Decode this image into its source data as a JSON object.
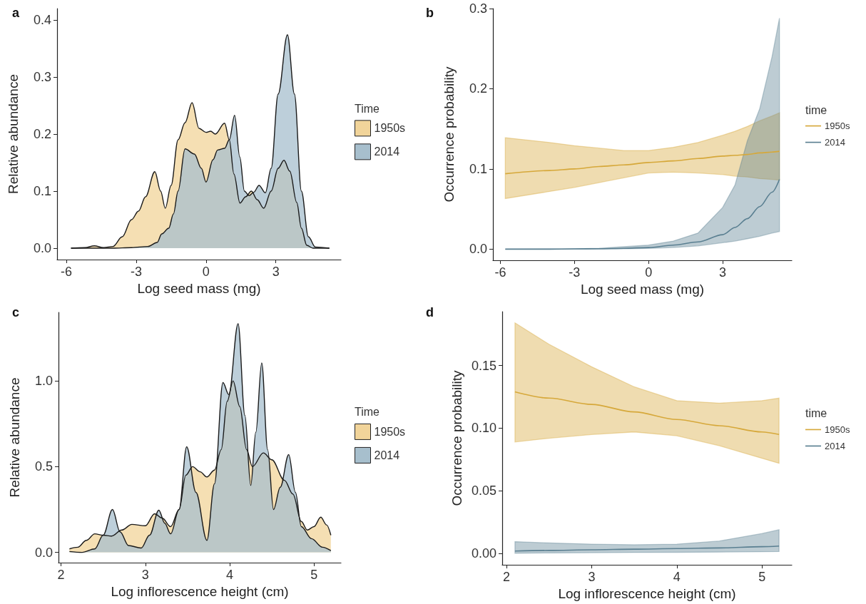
{
  "chart_data": [
    {
      "type": "area",
      "title": "a",
      "xlabel": "Log seed mass (mg)",
      "ylabel": "Relative abundance",
      "legend_title": "Time",
      "legend": "right",
      "grid": false,
      "xlim": [
        -6.4,
        5.8
      ],
      "xticks": [
        -6,
        -3,
        0,
        3
      ],
      "ylim": [
        -0.02,
        0.42
      ],
      "yticks": [
        {
          "value": 0,
          "label": "0.0"
        },
        0.1,
        0.2,
        0.3,
        0.4
      ],
      "series": [
        {
          "name": "1950s",
          "color": "#f1d49a",
          "x": [
            -5.8,
            -5.2,
            -4.8,
            -4.4,
            -4,
            -3.6,
            -3.2,
            -2.9,
            -2.6,
            -2.2,
            -1.95,
            -1.75,
            -1.5,
            -1.2,
            -0.9,
            -0.6,
            -0.3,
            0,
            0.2,
            0.4,
            0.8,
            1.0,
            1.2,
            1.46,
            1.7,
            1.95,
            2.2,
            2.48,
            2.8,
            3.1,
            3.35,
            3.6,
            3.9,
            4.1,
            4.33,
            4.6,
            5.3
          ],
          "values": [
            0,
            0.001,
            0.004,
            0.001,
            0.003,
            0.02,
            0.05,
            0.065,
            0.09,
            0.134,
            0.1,
            0.07,
            0.11,
            0.19,
            0.22,
            0.255,
            0.21,
            0.203,
            0.205,
            0.2,
            0.219,
            0.19,
            0.13,
            0.079,
            0.09,
            0.1,
            0.085,
            0.07,
            0.1,
            0.14,
            0.154,
            0.135,
            0.08,
            0.035,
            0.005,
            0,
            0
          ]
        },
        {
          "name": "2014",
          "color": "#a7bfcd",
          "x": [
            -5.8,
            -4,
            -3.2,
            -2.5,
            -2.1,
            -1.9,
            -1.6,
            -1.4,
            -1.2,
            -0.9,
            -0.5,
            -0.2,
            0,
            0.3,
            0.5,
            0.8,
            1.0,
            1.23,
            1.45,
            1.65,
            1.85,
            2.05,
            2.28,
            2.55,
            2.8,
            3.1,
            3.5,
            3.8,
            4.1,
            4.4,
            4.7,
            5.3
          ],
          "values": [
            0,
            0,
            0.001,
            0.003,
            0.01,
            0.025,
            0.035,
            0.06,
            0.1,
            0.174,
            0.165,
            0.14,
            0.116,
            0.155,
            0.172,
            0.175,
            0.19,
            0.233,
            0.16,
            0.1,
            0.092,
            0.098,
            0.11,
            0.097,
            0.14,
            0.27,
            0.374,
            0.27,
            0.1,
            0.02,
            0.002,
            0
          ]
        }
      ]
    },
    {
      "type": "line",
      "title": "b",
      "xlabel": "Log seed mass (mg)",
      "ylabel": "Occurrence probability",
      "legend_title": "time",
      "legend": "right",
      "grid": false,
      "xlim": [
        -6.3,
        5.8
      ],
      "xticks": [
        -6,
        -3,
        0,
        3
      ],
      "ylim": [
        -0.014,
        0.3
      ],
      "yticks": [
        {
          "value": 0,
          "label": "0.0"
        },
        0.1,
        0.2,
        0.3
      ],
      "series": [
        {
          "name": "1950s",
          "color": "#d6a83a",
          "x": [
            -5.8,
            -4,
            -3,
            -2,
            -1,
            0,
            1,
            2,
            3,
            3.5,
            4,
            4.5,
            5,
            5.3
          ],
          "values": [
            0.094,
            0.098,
            0.1,
            0.103,
            0.105,
            0.108,
            0.11,
            0.113,
            0.116,
            0.117,
            0.118,
            0.12,
            0.121,
            0.122
          ],
          "lower": [
            0.063,
            0.072,
            0.077,
            0.083,
            0.089,
            0.095,
            0.096,
            0.095,
            0.093,
            0.091,
            0.09,
            0.088,
            0.087,
            0.086
          ],
          "upper": [
            0.139,
            0.133,
            0.129,
            0.126,
            0.123,
            0.123,
            0.127,
            0.133,
            0.142,
            0.147,
            0.153,
            0.16,
            0.166,
            0.17
          ]
        },
        {
          "name": "2014",
          "color": "#5a7f91",
          "x": [
            -5.8,
            -4,
            -3,
            -2,
            -1,
            0,
            1,
            2,
            3,
            3.5,
            4,
            4.5,
            5,
            5.3
          ],
          "values": [
            0,
            0,
            0.0003,
            0.0005,
            0.001,
            0.002,
            0.005,
            0.009,
            0.018,
            0.027,
            0.038,
            0.053,
            0.071,
            0.087
          ],
          "lower": [
            0,
            0,
            0,
            0,
            0.0005,
            0.001,
            0.002,
            0.004,
            0.008,
            0.01,
            0.013,
            0.016,
            0.02,
            0.022
          ],
          "upper": [
            0,
            0.0002,
            0.0005,
            0.001,
            0.003,
            0.005,
            0.01,
            0.02,
            0.052,
            0.08,
            0.135,
            0.175,
            0.24,
            0.288
          ]
        }
      ]
    },
    {
      "type": "area",
      "title": "c",
      "xlabel": "Log inflorescence height (cm)",
      "ylabel": "Relative abundance",
      "legend_title": "Time",
      "legend": "right",
      "grid": false,
      "xlim": [
        1.97,
        5.32
      ],
      "xticks": [
        2,
        3,
        4,
        5
      ],
      "ylim": [
        -0.06,
        1.4
      ],
      "yticks": [
        {
          "value": 0,
          "label": "0.0"
        },
        {
          "value": 0.5,
          "label": "0.5"
        },
        {
          "value": 1,
          "label": "1.0"
        }
      ],
      "series": [
        {
          "name": "1950s",
          "color": "#f1d49a",
          "x": [
            2.1,
            2.2,
            2.3,
            2.4,
            2.5,
            2.6,
            2.72,
            2.84,
            3.0,
            3.11,
            3.2,
            3.3,
            3.4,
            3.48,
            3.56,
            3.65,
            3.73,
            3.82,
            3.9,
            3.97,
            4.04,
            4.12,
            4.2,
            4.27,
            4.4,
            4.5,
            4.65,
            4.75,
            4.85,
            4.92,
            5.0,
            5.08,
            5.15,
            5.2
          ],
          "values": [
            0.02,
            0.03,
            0.07,
            0.108,
            0.1,
            0.095,
            0.13,
            0.163,
            0.155,
            0.225,
            0.2,
            0.15,
            0.25,
            0.45,
            0.5,
            0.47,
            0.44,
            0.48,
            0.6,
            0.88,
            1.0,
            0.85,
            0.6,
            0.5,
            0.58,
            0.54,
            0.42,
            0.34,
            0.18,
            0.13,
            0.15,
            0.205,
            0.16,
            0.1
          ]
        },
        {
          "name": "2014",
          "color": "#a7bfcd",
          "x": [
            2.1,
            2.25,
            2.4,
            2.5,
            2.61,
            2.7,
            2.8,
            2.95,
            3.05,
            3.16,
            3.23,
            3.3,
            3.4,
            3.49,
            3.6,
            3.73,
            3.82,
            3.92,
            3.99,
            4.1,
            4.18,
            4.25,
            4.31,
            4.38,
            4.45,
            4.52,
            4.6,
            4.7,
            4.78,
            4.85,
            4.97,
            5.1,
            5.2
          ],
          "values": [
            0.005,
            0,
            0.02,
            0.1,
            0.25,
            0.12,
            0.04,
            0.025,
            0.1,
            0.246,
            0.17,
            0.108,
            0.25,
            0.616,
            0.35,
            0.07,
            0.4,
            0.99,
            0.92,
            1.334,
            0.8,
            0.39,
            0.7,
            1.105,
            0.6,
            0.25,
            0.38,
            0.57,
            0.35,
            0.15,
            0.08,
            0.03,
            0.01
          ]
        }
      ]
    },
    {
      "type": "line",
      "title": "d",
      "xlabel": "Log inflorescence height (cm)",
      "ylabel": "Occurrence probability",
      "legend_title": "time",
      "legend": "right",
      "grid": false,
      "xlim": [
        1.95,
        5.35
      ],
      "xticks": [
        2,
        3,
        4,
        5
      ],
      "ylim": [
        -0.009,
        0.193
      ],
      "yticks": [
        {
          "value": 0,
          "label": "0.00"
        },
        {
          "value": 0.05,
          "label": "0.05"
        },
        {
          "value": 0.1,
          "label": "0.10"
        },
        {
          "value": 0.15,
          "label": "0.15"
        }
      ],
      "series": [
        {
          "name": "1950s",
          "color": "#d6a83a",
          "x": [
            2.1,
            2.5,
            3,
            3.5,
            4,
            4.5,
            5,
            5.2
          ],
          "values": [
            0.129,
            0.124,
            0.119,
            0.113,
            0.107,
            0.102,
            0.097,
            0.095
          ],
          "lower": [
            0.089,
            0.092,
            0.095,
            0.097,
            0.094,
            0.086,
            0.076,
            0.072
          ],
          "upper": [
            0.184,
            0.167,
            0.149,
            0.133,
            0.122,
            0.12,
            0.122,
            0.124
          ]
        },
        {
          "name": "2014",
          "color": "#5a7f91",
          "x": [
            2.1,
            2.5,
            3,
            3.5,
            4,
            4.5,
            5,
            5.2
          ],
          "values": [
            0.002,
            0.0025,
            0.003,
            0.0035,
            0.004,
            0.0045,
            0.0055,
            0.006
          ],
          "lower": [
            0.0003,
            0.0005,
            0.0007,
            0.0009,
            0.001,
            0.0012,
            0.0015,
            0.0016
          ],
          "upper": [
            0.0095,
            0.0085,
            0.0075,
            0.007,
            0.0075,
            0.01,
            0.016,
            0.019
          ]
        }
      ]
    }
  ]
}
